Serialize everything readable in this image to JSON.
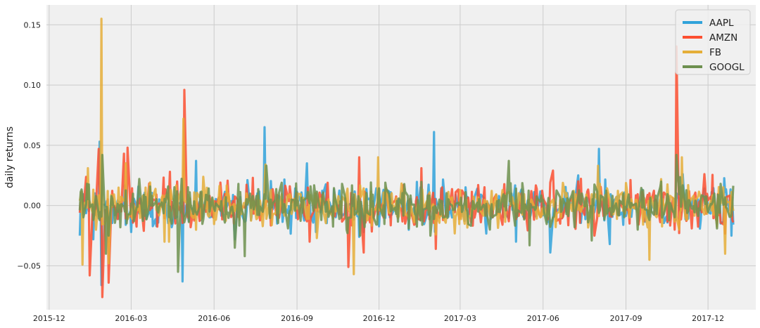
{
  "chart_data": {
    "type": "line",
    "title": "",
    "xlabel": "",
    "ylabel": "daily returns",
    "xlim": [
      "2015-11-28",
      "2018-01-23"
    ],
    "ylim": [
      -0.0865,
      0.1665
    ],
    "grid": true,
    "legend_position": "top-right",
    "x_ticks": [
      "2015-12",
      "2016-03",
      "2016-06",
      "2016-09",
      "2016-12",
      "2017-03",
      "2017-06",
      "2017-09",
      "2017-12"
    ],
    "y_ticks": [
      -0.05,
      0.0,
      0.05,
      0.1,
      0.15
    ],
    "y_tick_labels": [
      "−0.05",
      "0.00",
      "0.05",
      "0.10",
      "0.15"
    ],
    "date_range": [
      "2016-01-04",
      "2017-12-29"
    ],
    "series": [
      {
        "name": "AAPL",
        "color": "#30a2da",
        "spikes": [
          [
            "2016-01-04",
            -0.025
          ],
          [
            "2016-01-12",
            0.012
          ],
          [
            "2016-01-19",
            -0.028
          ],
          [
            "2016-01-26",
            0.053
          ],
          [
            "2016-01-28",
            -0.066
          ],
          [
            "2016-02-05",
            -0.03
          ],
          [
            "2016-03-01",
            -0.022
          ],
          [
            "2016-04-27",
            -0.063
          ],
          [
            "2016-05-12",
            0.037
          ],
          [
            "2016-06-24",
            -0.028
          ],
          [
            "2016-07-27",
            0.065
          ],
          [
            "2016-08-10",
            -0.015
          ],
          [
            "2016-09-12",
            0.035
          ],
          [
            "2016-09-22",
            -0.022
          ],
          [
            "2016-11-09",
            -0.026
          ],
          [
            "2016-11-14",
            -0.022
          ],
          [
            "2017-01-31",
            0.061
          ],
          [
            "2017-05-02",
            -0.03
          ],
          [
            "2017-06-09",
            -0.039
          ],
          [
            "2017-08-02",
            0.047
          ],
          [
            "2017-08-14",
            -0.032
          ],
          [
            "2017-11-03",
            0.026
          ],
          [
            "2017-11-07",
            -0.012
          ],
          [
            "2017-12-27",
            -0.025
          ]
        ]
      },
      {
        "name": "AMZN",
        "color": "#fc4f30",
        "spikes": [
          [
            "2016-01-04",
            -0.006
          ],
          [
            "2016-01-15",
            -0.058
          ],
          [
            "2016-01-25",
            0.047
          ],
          [
            "2016-01-29",
            -0.076
          ],
          [
            "2016-02-05",
            -0.064
          ],
          [
            "2016-02-22",
            0.043
          ],
          [
            "2016-02-26",
            0.048
          ],
          [
            "2016-03-15",
            -0.021
          ],
          [
            "2016-04-13",
            0.028
          ],
          [
            "2016-04-29",
            0.096
          ],
          [
            "2016-05-06",
            -0.018
          ],
          [
            "2016-09-15",
            -0.03
          ],
          [
            "2016-10-28",
            -0.051
          ],
          [
            "2016-11-09",
            0.04
          ],
          [
            "2016-11-14",
            -0.039
          ],
          [
            "2017-01-17",
            0.031
          ],
          [
            "2017-02-02",
            -0.036
          ],
          [
            "2017-06-12",
            0.029
          ],
          [
            "2017-07-28",
            -0.025
          ],
          [
            "2017-10-27",
            0.132
          ],
          [
            "2017-11-13",
            -0.019
          ],
          [
            "2017-11-27",
            0.026
          ],
          [
            "2017-12-29",
            -0.014
          ]
        ]
      },
      {
        "name": "FB",
        "color": "#e5ae38",
        "spikes": [
          [
            "2016-01-04",
            0.004
          ],
          [
            "2016-01-07",
            -0.049
          ],
          [
            "2016-01-13",
            0.031
          ],
          [
            "2016-01-28",
            0.155
          ],
          [
            "2016-02-05",
            -0.048
          ],
          [
            "2016-02-24",
            0.035
          ],
          [
            "2016-04-07",
            -0.03
          ],
          [
            "2016-04-28",
            0.072
          ],
          [
            "2016-07-28",
            0.034
          ],
          [
            "2016-09-23",
            -0.027
          ],
          [
            "2016-11-03",
            -0.057
          ],
          [
            "2016-11-30",
            0.04
          ],
          [
            "2017-02-02",
            -0.024
          ],
          [
            "2017-08-01",
            0.033
          ],
          [
            "2017-09-27",
            -0.045
          ],
          [
            "2017-11-02",
            0.04
          ],
          [
            "2017-12-20",
            -0.04
          ]
        ]
      },
      {
        "name": "GOOGL",
        "color": "#6d904f",
        "spikes": [
          [
            "2016-01-04",
            -0.004
          ],
          [
            "2016-01-12",
            0.018
          ],
          [
            "2016-01-29",
            0.042
          ],
          [
            "2016-02-02",
            -0.04
          ],
          [
            "2016-02-05",
            -0.025
          ],
          [
            "2016-03-10",
            0.022
          ],
          [
            "2016-04-22",
            -0.055
          ],
          [
            "2016-06-24",
            -0.035
          ],
          [
            "2016-07-05",
            -0.042
          ],
          [
            "2016-07-29",
            0.033
          ],
          [
            "2016-09-28",
            -0.012
          ],
          [
            "2016-10-26",
            -0.02
          ],
          [
            "2016-11-10",
            -0.025
          ],
          [
            "2017-01-27",
            -0.025
          ],
          [
            "2017-04-03",
            -0.02
          ],
          [
            "2017-04-24",
            0.037
          ],
          [
            "2017-05-17",
            -0.033
          ],
          [
            "2017-07-25",
            -0.029
          ],
          [
            "2017-09-14",
            -0.02
          ],
          [
            "2017-10-27",
            0.042
          ],
          [
            "2017-12-11",
            -0.019
          ]
        ]
      }
    ]
  }
}
